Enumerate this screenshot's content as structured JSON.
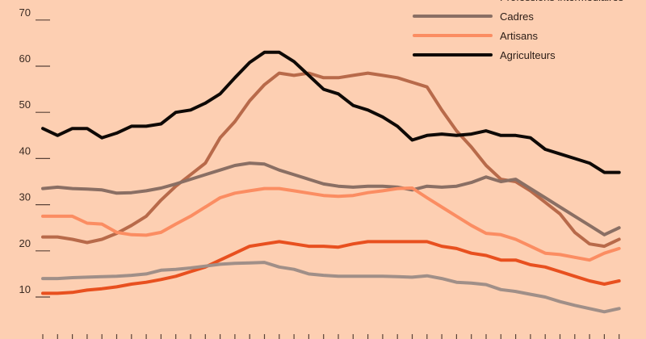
{
  "chart_data": {
    "type": "line",
    "title": "",
    "xlabel": "",
    "ylabel": "",
    "ylim": [
      0,
      75
    ],
    "yticks": [
      10,
      20,
      30,
      40,
      50,
      60,
      70
    ],
    "grid": false,
    "legend_position": "top-right",
    "x": [
      1,
      2,
      3,
      4,
      5,
      6,
      7,
      8,
      9,
      10,
      11,
      12,
      13,
      14,
      15,
      16,
      17,
      18,
      19,
      20,
      21,
      22,
      23,
      24,
      25,
      26,
      27,
      28,
      29,
      30,
      31,
      32,
      33,
      34,
      35,
      36,
      37,
      38,
      39,
      40
    ],
    "series": [
      {
        "name": "Professions intermédiaires",
        "color": "#b86a4a",
        "values": [
          23,
          23,
          22.5,
          21.8,
          22.5,
          23.8,
          25.5,
          27.5,
          31,
          34,
          36.5,
          39,
          44.5,
          48,
          52.5,
          56,
          58.5,
          58,
          58.5,
          57.5,
          57.5,
          58,
          58.5,
          58,
          57.5,
          56.5,
          55.5,
          50.5,
          46,
          42.5,
          38.5,
          35.5,
          35,
          33,
          30.5,
          28,
          24,
          21.5,
          21,
          22.5
        ]
      },
      {
        "name": "Cadres",
        "color": "#8a6f64",
        "values": [
          33.5,
          33.8,
          33.5,
          33.4,
          33.2,
          32.5,
          32.6,
          33,
          33.6,
          34.5,
          35.5,
          36.5,
          37.5,
          38.5,
          39,
          38.8,
          37.5,
          36.5,
          35.5,
          34.5,
          34,
          33.8,
          34,
          34,
          33.8,
          33.2,
          34,
          33.8,
          34,
          34.8,
          36,
          35,
          35.5,
          33.5,
          31.5,
          29.5,
          27.5,
          25.5,
          23.5,
          25
        ]
      },
      {
        "name": "Artisans",
        "color": "#fb8d62",
        "values": [
          27.5,
          27.5,
          27.5,
          26,
          25.8,
          24,
          23.5,
          23.4,
          24,
          25.8,
          27.5,
          29.5,
          31.5,
          32.5,
          33,
          33.5,
          33.5,
          33,
          32.5,
          32,
          31.8,
          32,
          32.6,
          33,
          33.5,
          33.6,
          31.5,
          29.5,
          27.5,
          25.5,
          23.8,
          23.5,
          22.5,
          21,
          19.5,
          19.2,
          18.6,
          18,
          19.5,
          20.5
        ]
      },
      {
        "name": "Agriculteurs",
        "color": "#0e0906",
        "values": [
          46.5,
          45,
          46.5,
          46.5,
          44.5,
          45.5,
          47,
          47,
          47.5,
          50,
          50.5,
          52,
          54,
          57.5,
          60.8,
          63,
          63,
          61,
          58,
          55,
          54,
          51.5,
          50.5,
          49,
          47,
          44,
          45,
          45.3,
          45,
          45.3,
          46,
          45,
          45,
          44.5,
          42,
          41,
          40,
          39,
          37,
          37
        ]
      },
      {
        "name": "",
        "color": "#e8501f",
        "values": [
          10.8,
          10.8,
          11,
          11.5,
          11.8,
          12.2,
          12.8,
          13.2,
          13.8,
          14.5,
          15.5,
          16.5,
          18,
          19.5,
          21,
          21.5,
          22,
          21.5,
          21,
          21,
          20.8,
          21.5,
          22,
          22,
          22,
          22,
          22,
          21,
          20.5,
          19.5,
          19,
          18,
          18,
          17,
          16.5,
          15.5,
          14.5,
          13.5,
          12.8,
          13.5
        ]
      },
      {
        "name": "",
        "color": "#a08f88",
        "values": [
          14,
          14,
          14.2,
          14.3,
          14.4,
          14.5,
          14.7,
          15,
          15.8,
          16,
          16.3,
          16.7,
          17.1,
          17.3,
          17.4,
          17.5,
          16.5,
          16,
          15,
          14.7,
          14.5,
          14.5,
          14.5,
          14.5,
          14.4,
          14.3,
          14.6,
          14,
          13.2,
          13,
          12.7,
          11.6,
          11.2,
          10.6,
          10,
          9,
          8.2,
          7.5,
          6.8,
          7.5
        ]
      }
    ]
  }
}
